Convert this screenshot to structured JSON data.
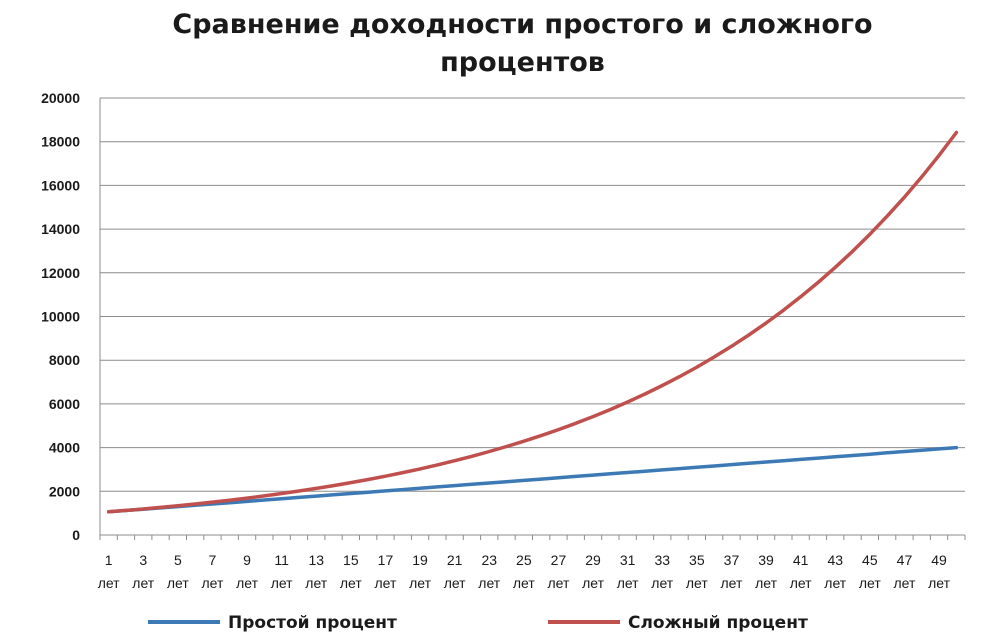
{
  "chart_data": {
    "type": "line",
    "title_lines": [
      "Сравнение доходности простого и сложного",
      "процентов"
    ],
    "x_unit_label": "лет",
    "x": [
      1,
      2,
      3,
      4,
      5,
      6,
      7,
      8,
      9,
      10,
      11,
      12,
      13,
      14,
      15,
      16,
      17,
      18,
      19,
      20,
      21,
      22,
      23,
      24,
      25,
      26,
      27,
      28,
      29,
      30,
      31,
      32,
      33,
      34,
      35,
      36,
      37,
      38,
      39,
      40,
      41,
      42,
      43,
      44,
      45,
      46,
      47,
      48,
      49,
      50
    ],
    "x_tick_labels": [
      "1",
      "3",
      "5",
      "7",
      "9",
      "11",
      "13",
      "15",
      "17",
      "19",
      "21",
      "23",
      "25",
      "27",
      "29",
      "31",
      "33",
      "35",
      "37",
      "39",
      "41",
      "43",
      "45",
      "47",
      "49"
    ],
    "ylim": [
      0,
      20000
    ],
    "y_ticks": [
      0,
      2000,
      4000,
      6000,
      8000,
      10000,
      12000,
      14000,
      16000,
      18000,
      20000
    ],
    "grid": true,
    "legend_position": "bottom",
    "series": [
      {
        "name": "Простой процент",
        "color": "#3d7ab5",
        "values": [
          1060,
          1120,
          1180,
          1240,
          1300,
          1360,
          1420,
          1480,
          1540,
          1600,
          1660,
          1720,
          1780,
          1840,
          1900,
          1960,
          2020,
          2080,
          2140,
          2200,
          2260,
          2320,
          2380,
          2440,
          2500,
          2560,
          2620,
          2680,
          2740,
          2800,
          2860,
          2920,
          2980,
          3040,
          3100,
          3160,
          3220,
          3280,
          3340,
          3400,
          3460,
          3520,
          3580,
          3640,
          3700,
          3760,
          3820,
          3880,
          3940,
          4000
        ]
      },
      {
        "name": "Сложный процент",
        "color": "#c0504d",
        "values": [
          1060,
          1124,
          1191,
          1262,
          1338,
          1419,
          1504,
          1594,
          1689,
          1791,
          1898,
          2012,
          2133,
          2261,
          2397,
          2540,
          2693,
          2854,
          3026,
          3207,
          3400,
          3604,
          3820,
          4049,
          4292,
          4549,
          4822,
          5112,
          5418,
          5743,
          6088,
          6453,
          6841,
          7251,
          7686,
          8147,
          8636,
          9154,
          9704,
          10286,
          10903,
          11557,
          12250,
          12985,
          13765,
          14590,
          15466,
          16394,
          17378,
          18420
        ]
      }
    ]
  }
}
